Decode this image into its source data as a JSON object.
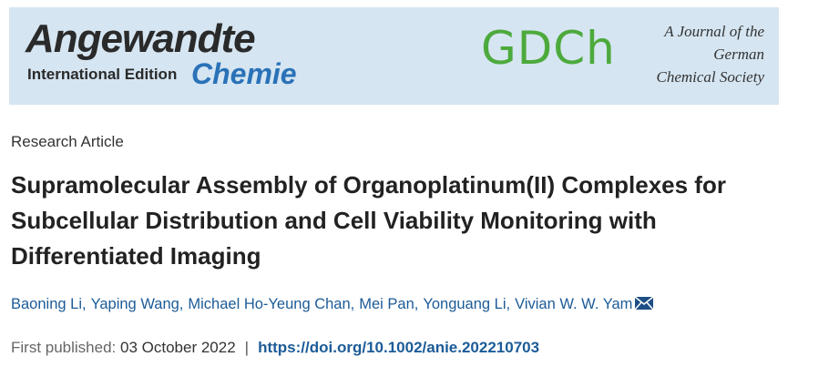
{
  "banner": {
    "journal": "Angewandte",
    "edition": "International Edition",
    "subtitle": "Chemie",
    "society_logo": "GDCh",
    "society_lines": [
      "A Journal of the",
      "German",
      "Chemical Society"
    ]
  },
  "article": {
    "type": "Research Article",
    "title_lines": [
      "Supramolecular Assembly of Organoplatinum(II) Complexes for",
      "Subcellular Distribution and Cell Viability Monitoring with",
      "Differentiated Imaging"
    ],
    "authors": [
      "Baoning Li,",
      "Yaping Wang,",
      "Michael Ho-Yeung Chan,",
      "Mei Pan,",
      "Yonguang Li,",
      "Vivian W. W. Yam"
    ],
    "published_label": "First published:",
    "published_date": "03 October 2022",
    "separator": "|",
    "doi": "https://doi.org/10.1002/anie.202210703"
  }
}
